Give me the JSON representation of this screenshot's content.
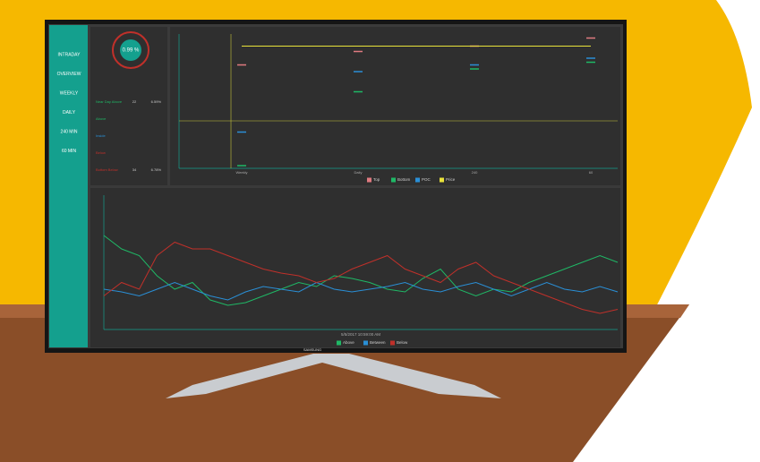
{
  "sidebar": {
    "items": [
      "INTRADAY",
      "OVERVIEW",
      "WEEKLY",
      "DAILY",
      "240 MIN",
      "60 MIN"
    ]
  },
  "gauge": {
    "value_label": "0.99 %"
  },
  "stats": {
    "rows": [
      {
        "label": "Near Day Above",
        "count": 22,
        "pct": "6.59%"
      },
      {
        "label": "Above"
      },
      {
        "label": "Inside"
      },
      {
        "label": "Below"
      },
      {
        "label": "Bottom Below",
        "count": 34,
        "pct": "6.78%"
      }
    ]
  },
  "chart_data": [
    {
      "type": "dot",
      "categories": [
        "Weekly",
        "Daily",
        "240",
        "60"
      ],
      "ylim": [
        0,
        100
      ],
      "series": [
        {
          "name": "Top",
          "color": "#e07a80",
          "values": [
            77,
            87,
            91,
            97
          ]
        },
        {
          "name": "Bottom",
          "color": "#1fb866",
          "values": [
            2,
            57,
            74,
            79
          ]
        },
        {
          "name": "POC",
          "color": "#2a8fd6",
          "values": [
            27,
            72,
            77,
            82
          ]
        },
        {
          "name": "Price",
          "color": "#e8e23a",
          "values": [
            91,
            91,
            91,
            91
          ]
        }
      ]
    },
    {
      "type": "line",
      "x_label": "5/5/2017 10:59:00 AM",
      "ylim": [
        0,
        100
      ],
      "x": [
        0,
        1,
        2,
        3,
        4,
        5,
        6,
        7,
        8,
        9,
        10,
        11,
        12,
        13,
        14,
        15,
        16,
        17,
        18,
        19,
        20,
        21,
        22,
        23,
        24,
        25,
        26,
        27,
        28,
        29
      ],
      "series": [
        {
          "name": "Above",
          "color": "#1fb866",
          "values": [
            70,
            60,
            55,
            40,
            30,
            35,
            22,
            18,
            20,
            25,
            30,
            35,
            32,
            40,
            38,
            35,
            30,
            28,
            38,
            45,
            30,
            25,
            30,
            28,
            35,
            40,
            45,
            50,
            55,
            50
          ]
        },
        {
          "name": "Between",
          "color": "#2a8fd6",
          "values": [
            30,
            28,
            25,
            30,
            35,
            30,
            25,
            22,
            28,
            32,
            30,
            28,
            35,
            30,
            28,
            30,
            32,
            35,
            30,
            28,
            32,
            35,
            30,
            25,
            30,
            35,
            30,
            28,
            32,
            28
          ]
        },
        {
          "name": "Below",
          "color": "#c0302a",
          "values": [
            25,
            35,
            30,
            55,
            65,
            60,
            60,
            55,
            50,
            45,
            42,
            40,
            35,
            38,
            45,
            50,
            55,
            45,
            40,
            35,
            45,
            50,
            40,
            35,
            30,
            25,
            20,
            15,
            12,
            15
          ]
        }
      ]
    }
  ],
  "brand": "SAMSUNG"
}
